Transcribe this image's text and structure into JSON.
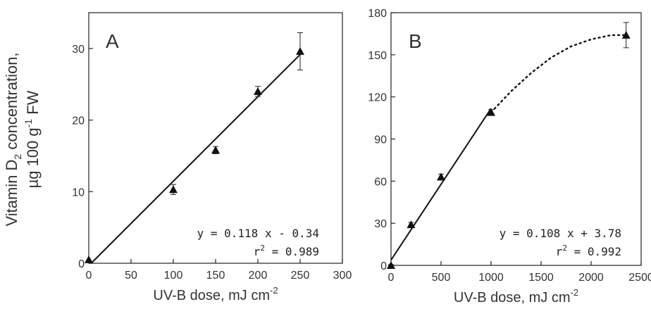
{
  "ylabel_line1": "Vitamin D",
  "ylabel_sub": "2",
  "ylabel_line1_rest": " concentration,",
  "ylabel_line2": "µg 100 g",
  "ylabel_line2_sup": "-1",
  "ylabel_line2_rest": " FW",
  "chart_data": [
    {
      "type": "scatter",
      "panel_label": "A",
      "xlabel": "UV-B dose, mJ cm",
      "xlabel_sup": "-2",
      "xlim": [
        0,
        300
      ],
      "ylim": [
        0,
        35
      ],
      "xticks": [
        0,
        50,
        100,
        150,
        200,
        250,
        300
      ],
      "yticks": [
        0,
        10,
        20,
        30
      ],
      "points": [
        {
          "x": 0,
          "y": 0.5,
          "err": 0.2
        },
        {
          "x": 100,
          "y": 10.3,
          "err": 0.7
        },
        {
          "x": 150,
          "y": 15.8,
          "err": 0.5
        },
        {
          "x": 200,
          "y": 24.0,
          "err": 0.7
        },
        {
          "x": 250,
          "y": 29.6,
          "err": 2.6
        }
      ],
      "fit": {
        "slope": 0.118,
        "intercept": -0.34,
        "x_range": [
          0,
          250
        ]
      },
      "equation": "y = 0.118 x - 0.34",
      "r2_prefix": "r",
      "r2_sup": "2",
      "r2_value": " = 0.989",
      "grid": false
    },
    {
      "type": "scatter",
      "panel_label": "B",
      "xlabel": "UV-B dose, mJ cm",
      "xlabel_sup": "-2",
      "xlim": [
        0,
        2500
      ],
      "ylim": [
        0,
        180
      ],
      "xticks": [
        0,
        500,
        1000,
        1500,
        2000,
        2500
      ],
      "yticks": [
        0,
        30,
        60,
        90,
        120,
        150,
        180
      ],
      "points": [
        {
          "x": 0,
          "y": 0,
          "err": 0.5
        },
        {
          "x": 200,
          "y": 29,
          "err": 1.5
        },
        {
          "x": 500,
          "y": 63,
          "err": 2
        },
        {
          "x": 1000,
          "y": 109,
          "err": 2
        },
        {
          "x": 2350,
          "y": 164,
          "err": 9
        }
      ],
      "fit": {
        "slope": 0.108,
        "intercept": 3.78,
        "x_range": [
          0,
          1000
        ]
      },
      "curve": [
        [
          1000,
          109
        ],
        [
          1200,
          124
        ],
        [
          1400,
          137
        ],
        [
          1600,
          148
        ],
        [
          1800,
          156
        ],
        [
          2000,
          161
        ],
        [
          2200,
          164
        ],
        [
          2350,
          164
        ]
      ],
      "equation": "y = 0.108 x + 3.78",
      "r2_prefix": "r",
      "r2_sup": "2",
      "r2_value": " = 0.992",
      "grid": false
    }
  ]
}
